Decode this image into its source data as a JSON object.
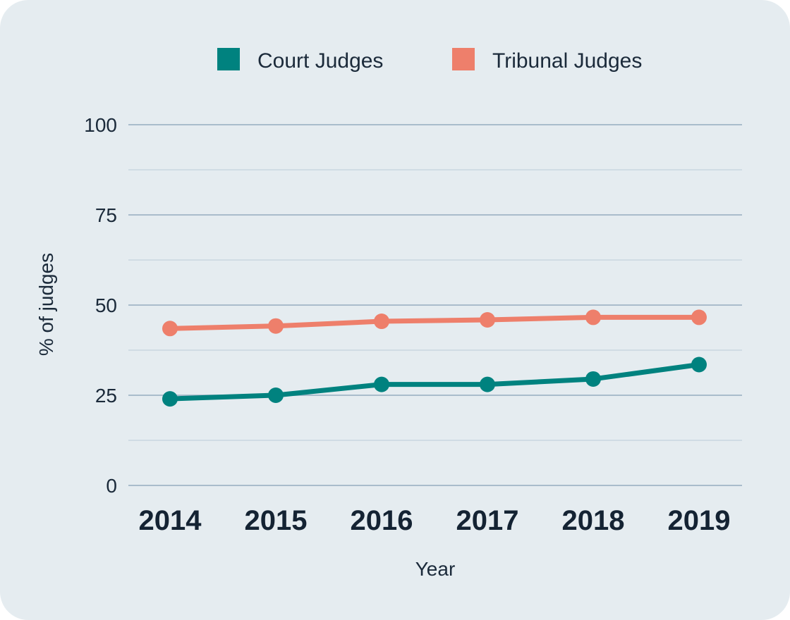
{
  "chart_data": {
    "type": "line",
    "x": [
      "2014",
      "2015",
      "2016",
      "2017",
      "2018",
      "2019"
    ],
    "series": [
      {
        "name": "Court Judges",
        "color": "#00827f",
        "values": [
          24,
          25,
          28,
          28,
          29.5,
          33.5
        ]
      },
      {
        "name": "Tribunal Judges",
        "color": "#ee7f6b",
        "values": [
          43.5,
          44.2,
          45.5,
          45.9,
          46.6,
          46.6
        ]
      }
    ],
    "title": "",
    "xlabel": "Year",
    "ylabel": "% of judges",
    "ylim": [
      0,
      100
    ],
    "yticks": [
      "0",
      "25",
      "50",
      "75",
      "100"
    ],
    "grid": true,
    "legend_position": "top"
  }
}
